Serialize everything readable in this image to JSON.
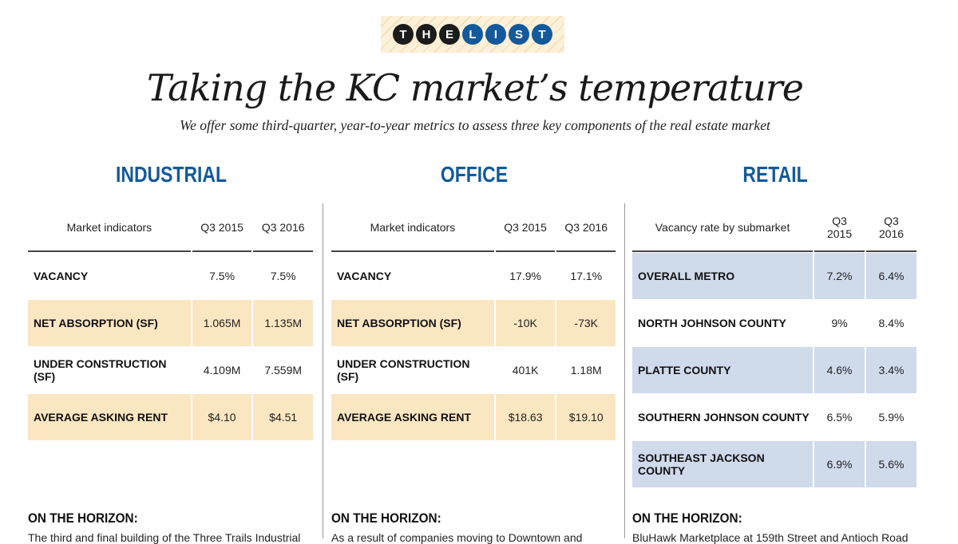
{
  "logo": {
    "letters": [
      "T",
      "H",
      "E",
      "L",
      "I",
      "S",
      "T"
    ]
  },
  "title": "Taking the KC market’s temperature",
  "subtitle": "We offer some third-quarter, year-to-year metrics to assess three key components of the real estate market",
  "colors": {
    "accent": "#13599c",
    "highlight_yellow": "#fbe6c2",
    "highlight_blue": "#cfdaea"
  },
  "sections": [
    {
      "heading": "INDUSTRIAL",
      "headers": [
        "Market indicators",
        "Q3 2015",
        "Q3 2016"
      ],
      "highlight": "y",
      "highlight_rows": [
        1,
        3
      ],
      "rows": [
        [
          "VACANCY",
          "7.5%",
          "7.5%"
        ],
        [
          "NET ABSORPTION (SF)",
          "1.065M",
          "1.135M"
        ],
        [
          "UNDER CONSTRUCTION (SF)",
          "4.109M",
          "7.559M"
        ],
        [
          "AVERAGE ASKING RENT",
          "$4.10",
          "$4.51"
        ]
      ],
      "horizon": "ON THE HORIZON:",
      "teaser": "The third and final building of the Three Trails Industrial"
    },
    {
      "heading": "OFFICE",
      "headers": [
        "Market indicators",
        "Q3 2015",
        "Q3 2016"
      ],
      "highlight": "y",
      "highlight_rows": [
        1,
        3
      ],
      "rows": [
        [
          "VACANCY",
          "17.9%",
          "17.1%"
        ],
        [
          "NET ABSORPTION (SF)",
          "-10K",
          "-73K"
        ],
        [
          "UNDER CONSTRUCTION (SF)",
          "401K",
          "1.18M"
        ],
        [
          "AVERAGE ASKING RENT",
          "$18.63",
          "$19.10"
        ]
      ],
      "horizon": "ON THE HORIZON:",
      "teaser": "As a result of companies moving to Downtown and"
    },
    {
      "heading": "RETAIL",
      "headers": [
        "Vacancy rate by submarket",
        "Q3 2015",
        "Q3 2016"
      ],
      "highlight": "b",
      "highlight_rows": [
        0,
        2,
        4
      ],
      "rows": [
        [
          "OVERALL METRO",
          "7.2%",
          "6.4%"
        ],
        [
          "NORTH JOHNSON COUNTY",
          "9%",
          "8.4%"
        ],
        [
          "PLATTE COUNTY",
          "4.6%",
          "3.4%"
        ],
        [
          "SOUTHERN JOHNSON COUNTY",
          "6.5%",
          "5.9%"
        ],
        [
          "SOUTHEAST JACKSON COUNTY",
          "6.9%",
          "5.6%"
        ]
      ],
      "horizon": "ON THE HORIZON:",
      "teaser": "BluHawk Marketplace at 159th Street and Antioch Road"
    }
  ]
}
